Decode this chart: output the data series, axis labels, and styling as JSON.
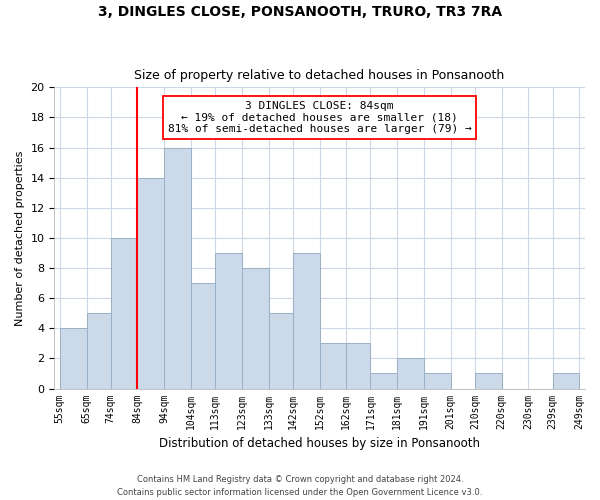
{
  "title": "3, DINGLES CLOSE, PONSANOOTH, TRURO, TR3 7RA",
  "subtitle": "Size of property relative to detached houses in Ponsanooth",
  "xlabel": "Distribution of detached houses by size in Ponsanooth",
  "ylabel": "Number of detached properties",
  "bar_color": "#ccd9e8",
  "bar_edge_color": "#9ab0c8",
  "vline_x": 84,
  "vline_color": "red",
  "annotation_title": "3 DINGLES CLOSE: 84sqm",
  "annotation_line1": "← 19% of detached houses are smaller (18)",
  "annotation_line2": "81% of semi-detached houses are larger (79) →",
  "bins": [
    55,
    65,
    74,
    84,
    94,
    104,
    113,
    123,
    133,
    142,
    152,
    162,
    171,
    181,
    191,
    201,
    210,
    220,
    230,
    239,
    249
  ],
  "heights": [
    4,
    5,
    10,
    14,
    16,
    7,
    9,
    8,
    5,
    9,
    3,
    3,
    1,
    2,
    1,
    0,
    1,
    0,
    0,
    1
  ],
  "ylim": [
    0,
    20
  ],
  "tick_labels": [
    "55sqm",
    "65sqm",
    "74sqm",
    "84sqm",
    "94sqm",
    "104sqm",
    "113sqm",
    "123sqm",
    "133sqm",
    "142sqm",
    "152sqm",
    "162sqm",
    "171sqm",
    "181sqm",
    "191sqm",
    "201sqm",
    "210sqm",
    "220sqm",
    "230sqm",
    "239sqm",
    "249sqm"
  ],
  "footer1": "Contains HM Land Registry data © Crown copyright and database right 2024.",
  "footer2": "Contains public sector information licensed under the Open Government Licence v3.0.",
  "bg_color": "#ffffff",
  "grid_color": "#ccd8e8"
}
